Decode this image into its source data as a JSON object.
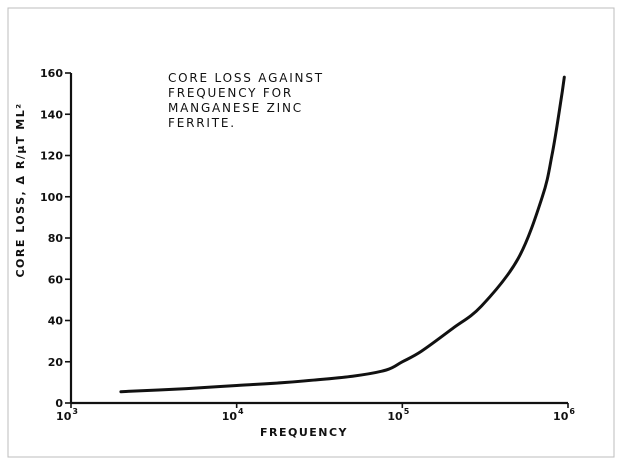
{
  "chart_data": {
    "type": "line",
    "title": [
      "CORE LOSS AGAINST",
      "FREQUENCY FOR",
      "MANGANESE ZINC",
      "FERRITE."
    ],
    "xlabel": "FREQUENCY",
    "ylabel": "CORE LOSS, Δ R/µT ML²",
    "x_scale": "log",
    "xlim": [
      1000,
      1000000
    ],
    "ylim": [
      0,
      160
    ],
    "x_ticks": [
      {
        "value": 1000,
        "base": "10",
        "exp": "3"
      },
      {
        "value": 10000,
        "base": "10",
        "exp": "4"
      },
      {
        "value": 100000,
        "base": "10",
        "exp": "5"
      },
      {
        "value": 1000000,
        "base": "10",
        "exp": "6"
      }
    ],
    "y_ticks": [
      0,
      20,
      40,
      60,
      80,
      100,
      120,
      140,
      160
    ],
    "series": [
      {
        "x": [
          2000,
          5000,
          10000,
          20000,
          50000,
          80000,
          100000,
          130000,
          200000,
          300000,
          500000,
          700000,
          800000,
          900000,
          950000
        ],
        "y": [
          5.5,
          7,
          8.5,
          10,
          13,
          16,
          20,
          25,
          36,
          47,
          70,
          100,
          120,
          145,
          158
        ],
        "color": "#111111"
      }
    ],
    "grid": false
  }
}
